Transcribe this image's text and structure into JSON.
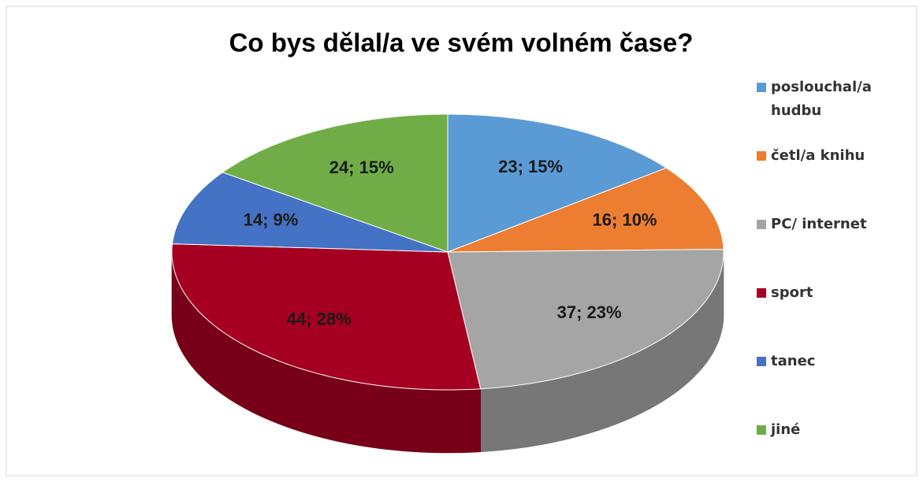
{
  "chart_data": {
    "type": "pie",
    "title": "Co bys dělal/a ve svém volném čase?",
    "categories": [
      "poslouchal/a hudbu",
      "četl/a knihu",
      "PC/ internet",
      "sport",
      "tanec",
      "jiné"
    ],
    "values": [
      23,
      16,
      37,
      44,
      14,
      24
    ],
    "value_labels": [
      "23; 15%",
      "16; 10%",
      "37; 23%",
      "44; 28%",
      "14; 9%",
      "24; 15%"
    ],
    "colors": [
      "#5b9bd5",
      "#ed7d31",
      "#a5a5a5",
      "#a50021",
      "#4472c4",
      "#70ad47"
    ],
    "legend": "right"
  }
}
